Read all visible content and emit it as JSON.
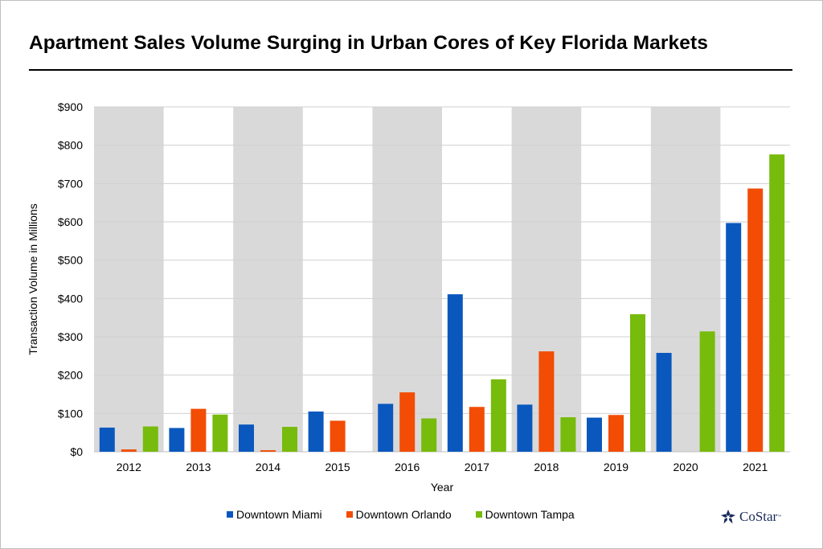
{
  "chart_data": {
    "type": "bar",
    "title": "Apartment Sales Volume Surging in Urban Cores of Key Florida Markets",
    "xlabel": "Year",
    "ylabel": "Transaction Volume in Millions",
    "ylim": [
      0,
      900
    ],
    "ytick_values": [
      0,
      100,
      200,
      300,
      400,
      500,
      600,
      700,
      800,
      900
    ],
    "ytick_labels": [
      "$0",
      "$100",
      "$200",
      "$300",
      "$400",
      "$500",
      "$600",
      "$700",
      "$800",
      "$900"
    ],
    "categories": [
      "2012",
      "2013",
      "2014",
      "2015",
      "2016",
      "2017",
      "2018",
      "2019",
      "2020",
      "2021"
    ],
    "shaded_bands": [
      0,
      2,
      4,
      6,
      8
    ],
    "series": [
      {
        "name": "Downtown Miami",
        "color": "#0a58be",
        "values": [
          63,
          62,
          71,
          105,
          125,
          411,
          123,
          89,
          258,
          597
        ]
      },
      {
        "name": "Downtown Orlando",
        "color": "#f24c05",
        "values": [
          6,
          112,
          4,
          81,
          155,
          117,
          262,
          96,
          0,
          687
        ]
      },
      {
        "name": "Downtown Tampa",
        "color": "#77bb0c",
        "values": [
          66,
          97,
          65,
          0,
          87,
          189,
          90,
          359,
          314,
          776
        ]
      }
    ],
    "grid": true,
    "legend_position": "bottom"
  },
  "colors": {
    "band": "#d9d9d9",
    "gridline": "#d0d0d0",
    "logo": "#1a2a5c"
  },
  "logo": {
    "text": "CoStar",
    "tm": "™"
  }
}
